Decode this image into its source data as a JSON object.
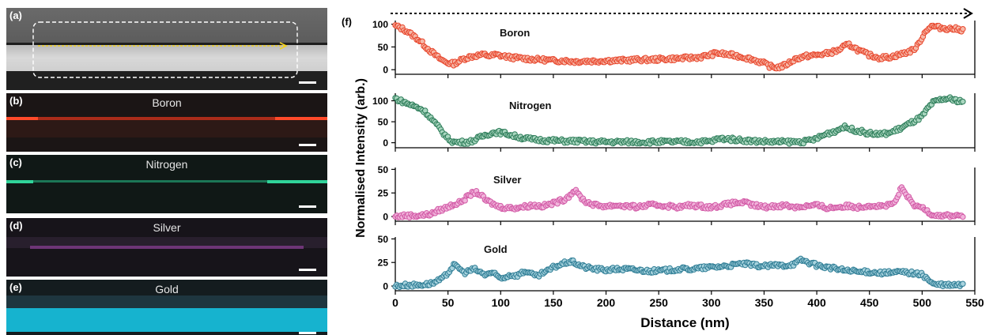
{
  "micrographs": {
    "a": {
      "label": "(a)"
    },
    "b": {
      "label": "(b)",
      "element": "Boron",
      "color": "#e0381f"
    },
    "c": {
      "label": "(c)",
      "element": "Nitrogen",
      "color": "#22c08a"
    },
    "d": {
      "label": "(d)",
      "element": "Silver",
      "color": "#8a3c8c"
    },
    "e": {
      "label": "(e)",
      "element": "Gold",
      "color": "#18a8c4"
    }
  },
  "chart_data": {
    "type": "scatter",
    "panel_label": "(f)",
    "xlabel": "Distance (nm)",
    "ylabel": "Normalised Intensity (arb.)",
    "xlim": [
      0,
      550
    ],
    "xticks": [
      0,
      50,
      100,
      150,
      200,
      250,
      300,
      350,
      400,
      450,
      500,
      550
    ],
    "series": [
      {
        "name": "Boron",
        "color": "#e8462c",
        "fill": "#f6b8a8",
        "ylim": [
          -10,
          108
        ],
        "yticks": [
          0,
          50,
          100
        ],
        "points": [
          [
            0,
            96
          ],
          [
            5,
            92
          ],
          [
            10,
            86
          ],
          [
            15,
            78
          ],
          [
            20,
            70
          ],
          [
            25,
            60
          ],
          [
            30,
            48
          ],
          [
            35,
            38
          ],
          [
            40,
            28
          ],
          [
            45,
            20
          ],
          [
            50,
            15
          ],
          [
            55,
            13
          ],
          [
            60,
            18
          ],
          [
            65,
            24
          ],
          [
            70,
            28
          ],
          [
            75,
            30
          ],
          [
            80,
            32
          ],
          [
            85,
            33
          ],
          [
            90,
            30
          ],
          [
            95,
            33
          ],
          [
            100,
            31
          ],
          [
            110,
            27
          ],
          [
            120,
            25
          ],
          [
            130,
            23
          ],
          [
            140,
            22
          ],
          [
            150,
            20
          ],
          [
            160,
            20
          ],
          [
            170,
            18
          ],
          [
            180,
            19
          ],
          [
            190,
            19
          ],
          [
            200,
            20
          ],
          [
            210,
            20
          ],
          [
            220,
            21
          ],
          [
            230,
            22
          ],
          [
            240,
            22
          ],
          [
            250,
            23
          ],
          [
            260,
            24
          ],
          [
            270,
            25
          ],
          [
            280,
            26
          ],
          [
            290,
            28
          ],
          [
            300,
            33
          ],
          [
            305,
            37
          ],
          [
            310,
            35
          ],
          [
            320,
            32
          ],
          [
            330,
            28
          ],
          [
            340,
            22
          ],
          [
            350,
            14
          ],
          [
            355,
            8
          ],
          [
            360,
            5
          ],
          [
            365,
            6
          ],
          [
            370,
            10
          ],
          [
            380,
            24
          ],
          [
            390,
            30
          ],
          [
            400,
            32
          ],
          [
            410,
            36
          ],
          [
            420,
            42
          ],
          [
            425,
            50
          ],
          [
            430,
            55
          ],
          [
            435,
            50
          ],
          [
            440,
            42
          ],
          [
            450,
            32
          ],
          [
            460,
            26
          ],
          [
            470,
            28
          ],
          [
            480,
            34
          ],
          [
            490,
            42
          ],
          [
            495,
            50
          ],
          [
            500,
            72
          ],
          [
            505,
            90
          ],
          [
            510,
            96
          ],
          [
            515,
            93
          ],
          [
            520,
            92
          ],
          [
            525,
            90
          ],
          [
            530,
            90
          ],
          [
            540,
            87
          ]
        ]
      },
      {
        "name": "Nitrogen",
        "color": "#2e7d5a",
        "fill": "#a9d6bf",
        "ylim": [
          -12,
          118
        ],
        "yticks": [
          0,
          50,
          100
        ],
        "points": [
          [
            0,
            106
          ],
          [
            5,
            100
          ],
          [
            10,
            95
          ],
          [
            15,
            90
          ],
          [
            20,
            85
          ],
          [
            25,
            80
          ],
          [
            30,
            70
          ],
          [
            35,
            55
          ],
          [
            40,
            40
          ],
          [
            45,
            25
          ],
          [
            50,
            10
          ],
          [
            55,
            2
          ],
          [
            60,
            1
          ],
          [
            70,
            2
          ],
          [
            75,
            6
          ],
          [
            80,
            12
          ],
          [
            85,
            18
          ],
          [
            90,
            22
          ],
          [
            95,
            25
          ],
          [
            100,
            24
          ],
          [
            105,
            22
          ],
          [
            110,
            18
          ],
          [
            120,
            12
          ],
          [
            130,
            8
          ],
          [
            140,
            6
          ],
          [
            150,
            5
          ],
          [
            160,
            4
          ],
          [
            170,
            4
          ],
          [
            180,
            3
          ],
          [
            190,
            2
          ],
          [
            200,
            2
          ],
          [
            220,
            2
          ],
          [
            240,
            2
          ],
          [
            260,
            2
          ],
          [
            280,
            2
          ],
          [
            300,
            3
          ],
          [
            305,
            8
          ],
          [
            310,
            10
          ],
          [
            320,
            8
          ],
          [
            330,
            6
          ],
          [
            340,
            4
          ],
          [
            350,
            3
          ],
          [
            360,
            2
          ],
          [
            380,
            2
          ],
          [
            390,
            3
          ],
          [
            400,
            10
          ],
          [
            410,
            22
          ],
          [
            420,
            30
          ],
          [
            425,
            38
          ],
          [
            430,
            34
          ],
          [
            440,
            28
          ],
          [
            450,
            22
          ],
          [
            460,
            20
          ],
          [
            470,
            24
          ],
          [
            480,
            35
          ],
          [
            490,
            48
          ],
          [
            495,
            55
          ],
          [
            500,
            62
          ],
          [
            505,
            80
          ],
          [
            510,
            95
          ],
          [
            515,
            100
          ],
          [
            520,
            104
          ],
          [
            525,
            105
          ],
          [
            530,
            102
          ],
          [
            540,
            98
          ]
        ]
      },
      {
        "name": "Silver",
        "color": "#d25aa6",
        "fill": "#f1b4db",
        "ylim": [
          -5,
          52
        ],
        "yticks": [
          0,
          25,
          50
        ],
        "points": [
          [
            0,
            0
          ],
          [
            10,
            1
          ],
          [
            20,
            1
          ],
          [
            30,
            2
          ],
          [
            35,
            3
          ],
          [
            40,
            6
          ],
          [
            45,
            8
          ],
          [
            50,
            10
          ],
          [
            55,
            13
          ],
          [
            60,
            14
          ],
          [
            65,
            18
          ],
          [
            70,
            22
          ],
          [
            75,
            26
          ],
          [
            80,
            24
          ],
          [
            85,
            18
          ],
          [
            90,
            15
          ],
          [
            95,
            12
          ],
          [
            100,
            10
          ],
          [
            110,
            9
          ],
          [
            120,
            10
          ],
          [
            130,
            12
          ],
          [
            140,
            11
          ],
          [
            150,
            14
          ],
          [
            155,
            16
          ],
          [
            160,
            18
          ],
          [
            165,
            22
          ],
          [
            170,
            28
          ],
          [
            175,
            22
          ],
          [
            180,
            16
          ],
          [
            190,
            12
          ],
          [
            200,
            11
          ],
          [
            210,
            12
          ],
          [
            220,
            11
          ],
          [
            230,
            10
          ],
          [
            240,
            12
          ],
          [
            250,
            12
          ],
          [
            260,
            11
          ],
          [
            270,
            10
          ],
          [
            280,
            12
          ],
          [
            290,
            11
          ],
          [
            300,
            10
          ],
          [
            310,
            12
          ],
          [
            320,
            14
          ],
          [
            330,
            15
          ],
          [
            340,
            12
          ],
          [
            350,
            10
          ],
          [
            360,
            11
          ],
          [
            370,
            12
          ],
          [
            380,
            10
          ],
          [
            390,
            11
          ],
          [
            400,
            12
          ],
          [
            410,
            9
          ],
          [
            420,
            10
          ],
          [
            430,
            11
          ],
          [
            440,
            10
          ],
          [
            450,
            12
          ],
          [
            460,
            11
          ],
          [
            470,
            12
          ],
          [
            475,
            16
          ],
          [
            480,
            30
          ],
          [
            485,
            24
          ],
          [
            490,
            14
          ],
          [
            495,
            10
          ],
          [
            500,
            10
          ],
          [
            505,
            6
          ],
          [
            510,
            2
          ],
          [
            520,
            1
          ],
          [
            530,
            1
          ],
          [
            540,
            1
          ]
        ]
      },
      {
        "name": "Gold",
        "color": "#2f7d95",
        "fill": "#a8d3de",
        "ylim": [
          -5,
          52
        ],
        "yticks": [
          0,
          25,
          50
        ],
        "points": [
          [
            0,
            0
          ],
          [
            10,
            1
          ],
          [
            20,
            1
          ],
          [
            30,
            2
          ],
          [
            35,
            3
          ],
          [
            40,
            5
          ],
          [
            45,
            8
          ],
          [
            50,
            14
          ],
          [
            55,
            22
          ],
          [
            60,
            20
          ],
          [
            65,
            14
          ],
          [
            70,
            16
          ],
          [
            75,
            18
          ],
          [
            80,
            15
          ],
          [
            85,
            12
          ],
          [
            90,
            14
          ],
          [
            95,
            12
          ],
          [
            100,
            8
          ],
          [
            105,
            10
          ],
          [
            110,
            12
          ],
          [
            115,
            11
          ],
          [
            120,
            14
          ],
          [
            125,
            16
          ],
          [
            130,
            12
          ],
          [
            135,
            10
          ],
          [
            140,
            14
          ],
          [
            145,
            16
          ],
          [
            150,
            20
          ],
          [
            155,
            22
          ],
          [
            160,
            24
          ],
          [
            165,
            26
          ],
          [
            170,
            25
          ],
          [
            175,
            22
          ],
          [
            180,
            20
          ],
          [
            190,
            18
          ],
          [
            200,
            17
          ],
          [
            210,
            18
          ],
          [
            220,
            18
          ],
          [
            230,
            17
          ],
          [
            240,
            16
          ],
          [
            250,
            16
          ],
          [
            260,
            17
          ],
          [
            270,
            18
          ],
          [
            280,
            18
          ],
          [
            290,
            19
          ],
          [
            300,
            20
          ],
          [
            310,
            21
          ],
          [
            320,
            22
          ],
          [
            330,
            24
          ],
          [
            340,
            22
          ],
          [
            350,
            21
          ],
          [
            360,
            22
          ],
          [
            370,
            22
          ],
          [
            380,
            24
          ],
          [
            385,
            28
          ],
          [
            390,
            26
          ],
          [
            400,
            22
          ],
          [
            410,
            20
          ],
          [
            420,
            18
          ],
          [
            430,
            16
          ],
          [
            440,
            15
          ],
          [
            450,
            15
          ],
          [
            460,
            14
          ],
          [
            470,
            14
          ],
          [
            480,
            15
          ],
          [
            490,
            14
          ],
          [
            495,
            13
          ],
          [
            500,
            12
          ],
          [
            505,
            8
          ],
          [
            510,
            2
          ],
          [
            520,
            1
          ],
          [
            530,
            1
          ],
          [
            540,
            1
          ]
        ]
      }
    ]
  }
}
